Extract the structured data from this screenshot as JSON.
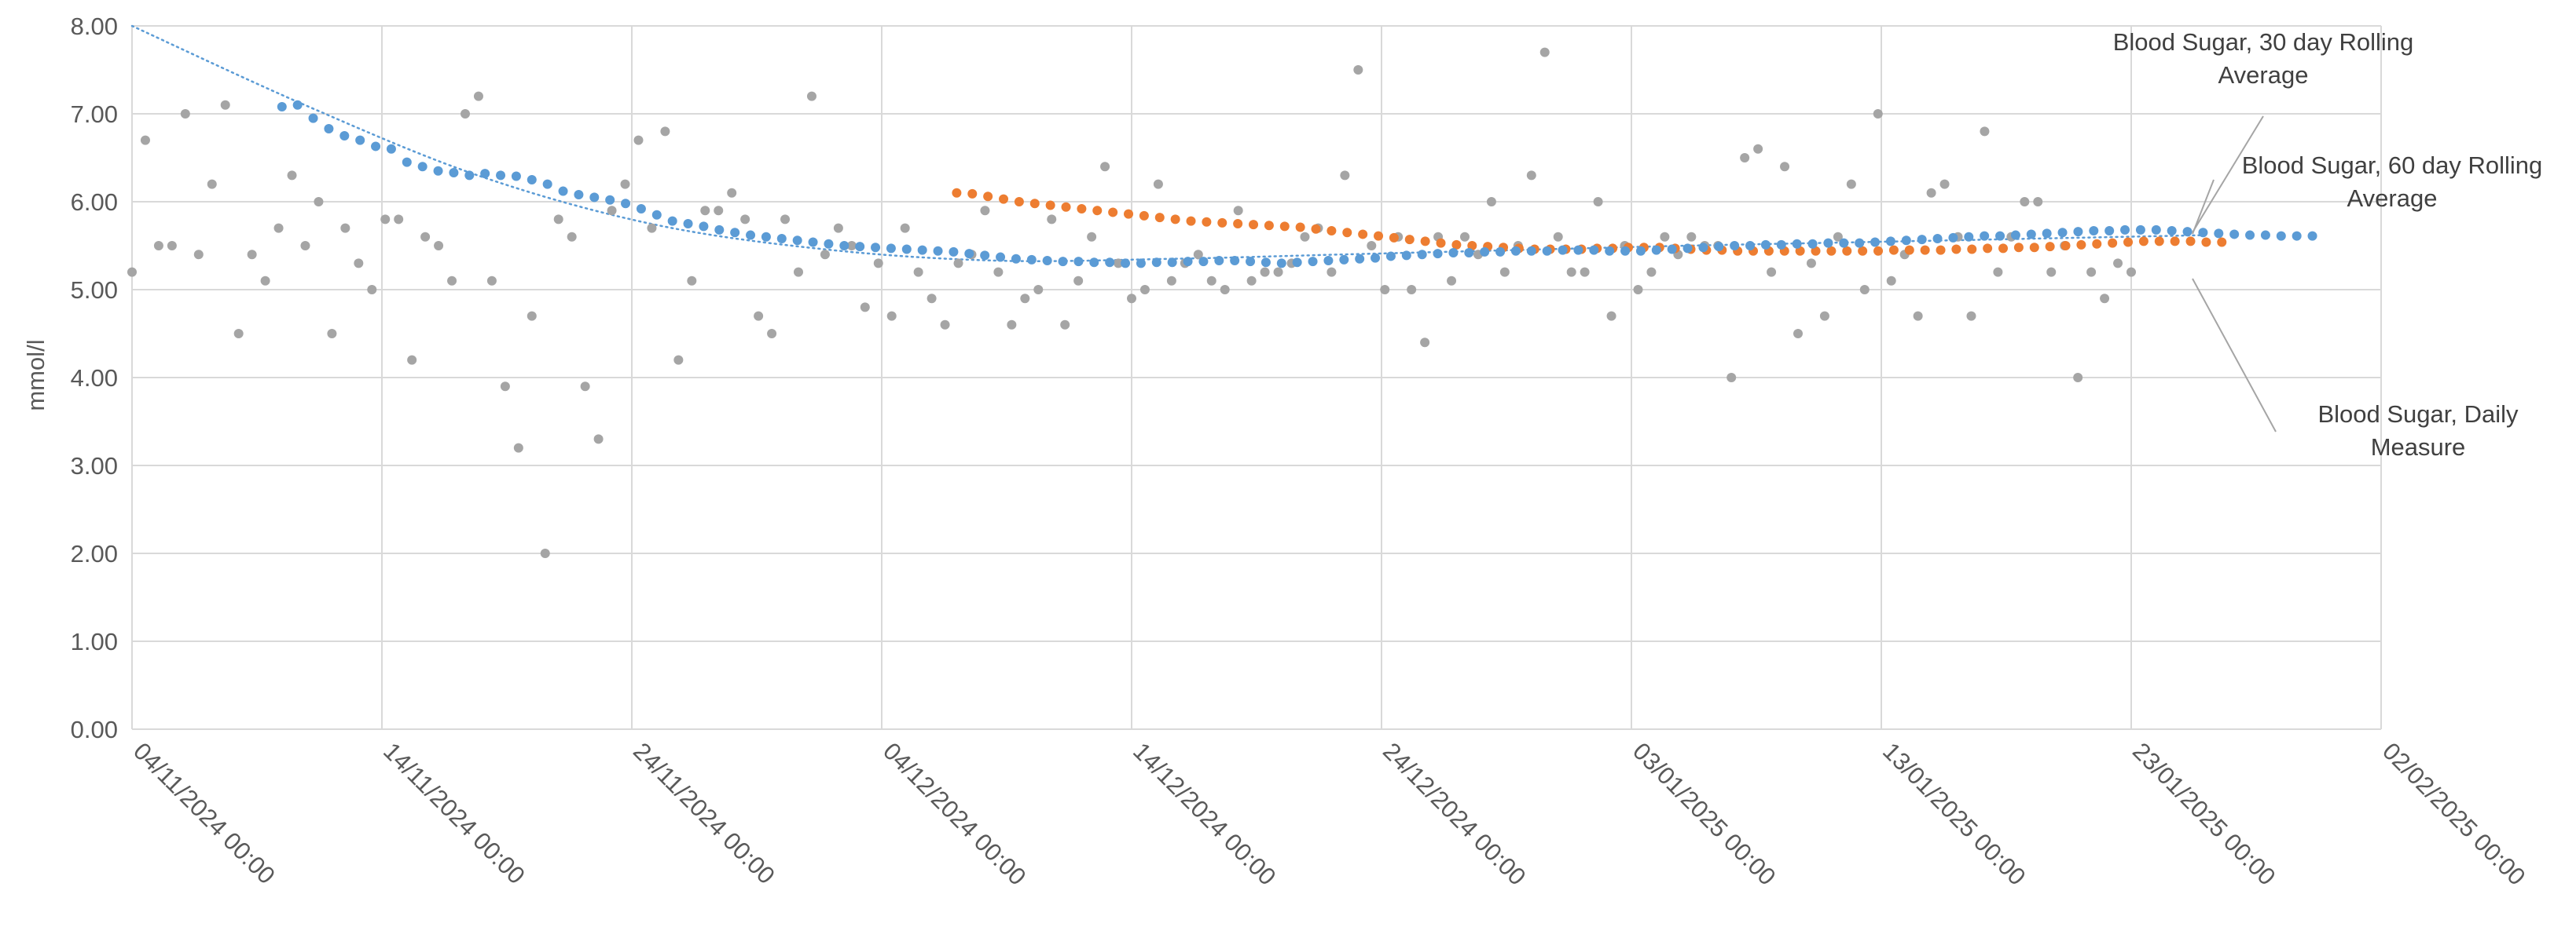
{
  "chart_data": {
    "type": "scatter",
    "title": "",
    "xlabel": "",
    "ylabel": "mmol/l",
    "xlim": [
      "2024-11-04",
      "2025-02-02"
    ],
    "ylim": [
      0,
      8
    ],
    "grid": true,
    "x_tick_labels": [
      "04/11/2024 00:00",
      "14/11/2024 00:00",
      "24/11/2024 00:00",
      "04/12/2024 00:00",
      "14/12/2024 00:00",
      "24/12/2024 00:00",
      "03/01/2025 00:00",
      "13/01/2025 00:00",
      "23/01/2025 00:00",
      "02/02/2025 00:00"
    ],
    "y_tick_labels": [
      "0.00",
      "1.00",
      "2.00",
      "3.00",
      "4.00",
      "5.00",
      "6.00",
      "7.00",
      "8.00"
    ],
    "series": [
      {
        "name": "Blood Sugar, Daily Measure",
        "color": "#a5a5a5",
        "start_date": "2024-11-04",
        "values": [
          5.2,
          6.7,
          5.5,
          5.5,
          7.0,
          5.4,
          6.2,
          7.1,
          4.5,
          5.4,
          5.1,
          5.7,
          6.3,
          5.5,
          6.0,
          4.5,
          5.7,
          5.3,
          5.0,
          5.8,
          5.8,
          4.2,
          5.6,
          5.5,
          5.1,
          7.0,
          7.2,
          5.1,
          3.9,
          3.2,
          4.7,
          2.0,
          5.8,
          5.6,
          3.9,
          3.3,
          5.9,
          6.2,
          6.7,
          5.7,
          6.8,
          4.2,
          5.1,
          5.9,
          5.9,
          6.1,
          5.8,
          4.7,
          4.5,
          5.8,
          5.2,
          7.2,
          5.4,
          5.7,
          5.5,
          4.8,
          5.3,
          4.7,
          5.7,
          5.2,
          4.9,
          4.6,
          5.3,
          5.4,
          5.9,
          5.2,
          4.6,
          4.9,
          5.0,
          5.8,
          4.6,
          5.1,
          5.6,
          6.4,
          5.3,
          4.9,
          5.0,
          6.2,
          5.1,
          5.3,
          5.4,
          5.1,
          5.0,
          5.9,
          5.1,
          5.2,
          5.2,
          5.3,
          5.6,
          5.7,
          5.2,
          6.3,
          7.5,
          5.5,
          5.0,
          5.6,
          5.0,
          4.4,
          5.6,
          5.1,
          5.6,
          5.4,
          6.0,
          5.2,
          5.5,
          6.3,
          7.7,
          5.6,
          5.2,
          5.2,
          6.0,
          4.7,
          5.5,
          5.0,
          5.2,
          5.6,
          5.4,
          5.6,
          5.5,
          5.5,
          4.0,
          6.5,
          6.6,
          5.2,
          6.4,
          4.5,
          5.3,
          4.7,
          5.6,
          6.2,
          5.0,
          7.0,
          5.1,
          5.4,
          4.7,
          6.1,
          6.2,
          5.6,
          4.7,
          6.8,
          5.2,
          5.6,
          6.0,
          6.0,
          5.2,
          5.5,
          4.0,
          5.2,
          4.9,
          5.3,
          5.2
        ]
      },
      {
        "name": "Blood Sugar, 30 day Rolling Average",
        "color": "#5b9bd5",
        "start_date": "2024-11-10",
        "values": [
          7.08,
          7.1,
          6.95,
          6.83,
          6.75,
          6.7,
          6.63,
          6.6,
          6.45,
          6.4,
          6.35,
          6.33,
          6.3,
          6.32,
          6.3,
          6.29,
          6.25,
          6.2,
          6.12,
          6.08,
          6.05,
          6.02,
          5.98,
          5.92,
          5.85,
          5.78,
          5.75,
          5.72,
          5.68,
          5.65,
          5.62,
          5.6,
          5.58,
          5.56,
          5.54,
          5.52,
          5.5,
          5.49,
          5.48,
          5.47,
          5.46,
          5.45,
          5.44,
          5.43,
          5.41,
          5.39,
          5.37,
          5.35,
          5.34,
          5.33,
          5.32,
          5.32,
          5.31,
          5.31,
          5.3,
          5.3,
          5.31,
          5.31,
          5.32,
          5.32,
          5.33,
          5.33,
          5.32,
          5.31,
          5.3,
          5.31,
          5.32,
          5.33,
          5.34,
          5.35,
          5.36,
          5.38,
          5.39,
          5.4,
          5.41,
          5.42,
          5.42,
          5.43,
          5.43,
          5.44,
          5.44,
          5.44,
          5.45,
          5.45,
          5.45,
          5.44,
          5.44,
          5.44,
          5.45,
          5.46,
          5.47,
          5.48,
          5.49,
          5.5,
          5.5,
          5.51,
          5.51,
          5.52,
          5.52,
          5.53,
          5.53,
          5.53,
          5.54,
          5.55,
          5.56,
          5.57,
          5.58,
          5.59,
          5.6,
          5.61,
          5.61,
          5.62,
          5.63,
          5.64,
          5.65,
          5.66,
          5.67,
          5.67,
          5.68,
          5.68,
          5.68,
          5.67,
          5.66,
          5.65,
          5.64,
          5.63,
          5.62,
          5.62,
          5.61,
          5.61,
          5.61
        ],
        "trendline": {
          "style": "dotted",
          "start": "2024-11-04",
          "end": "2025-01-26",
          "values": [
            8.0,
            7.1,
            6.3,
            5.75,
            5.46,
            5.33,
            5.35,
            5.4,
            5.45,
            5.5,
            5.54,
            5.58,
            5.62
          ]
        }
      },
      {
        "name": "Blood Sugar, 60 day Rolling Average",
        "color": "#ed7d31",
        "start_date": "2024-12-07",
        "values": [
          6.1,
          6.09,
          6.06,
          6.03,
          6.0,
          5.98,
          5.96,
          5.94,
          5.92,
          5.9,
          5.88,
          5.86,
          5.84,
          5.82,
          5.8,
          5.78,
          5.77,
          5.76,
          5.75,
          5.74,
          5.73,
          5.72,
          5.71,
          5.69,
          5.67,
          5.65,
          5.63,
          5.61,
          5.59,
          5.57,
          5.55,
          5.53,
          5.51,
          5.5,
          5.49,
          5.48,
          5.47,
          5.46,
          5.46,
          5.46,
          5.46,
          5.47,
          5.47,
          5.48,
          5.48,
          5.48,
          5.47,
          5.46,
          5.45,
          5.45,
          5.44,
          5.44,
          5.44,
          5.44,
          5.44,
          5.44,
          5.44,
          5.44,
          5.44,
          5.44,
          5.45,
          5.45,
          5.45,
          5.45,
          5.46,
          5.46,
          5.47,
          5.47,
          5.48,
          5.48,
          5.49,
          5.5,
          5.51,
          5.52,
          5.53,
          5.54,
          5.55,
          5.55,
          5.55,
          5.55,
          5.54,
          5.54
        ]
      }
    ],
    "callouts": [
      {
        "series_index": 1,
        "lines": [
          "Blood Sugar, 30 day Rolling",
          "Average"
        ]
      },
      {
        "series_index": 2,
        "lines": [
          "Blood Sugar, 60 day Rolling",
          "Average"
        ]
      },
      {
        "series_index": 0,
        "lines": [
          "Blood Sugar, Daily",
          "Measure"
        ]
      }
    ]
  }
}
